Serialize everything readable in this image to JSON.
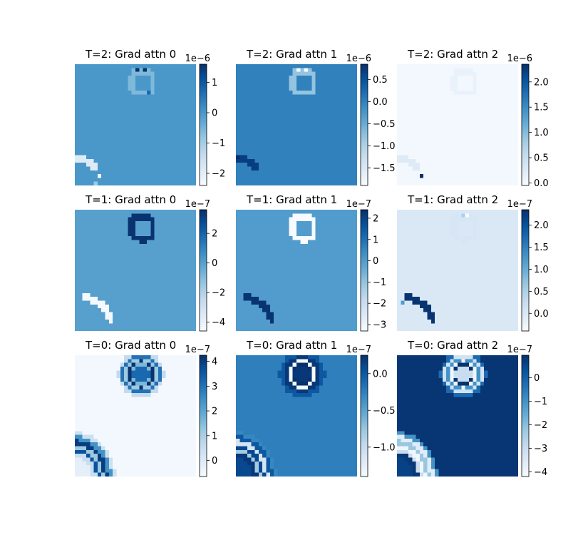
{
  "colormap": "Blues",
  "colormap_stops": [
    "#f7fbff",
    "#deebf7",
    "#c6dbef",
    "#9ecae1",
    "#6baed6",
    "#4292c6",
    "#2171b5",
    "#08519c",
    "#08306b"
  ],
  "chart_data": [
    {
      "type": "heatmap",
      "title": "T=2: Grad attn 0",
      "grid": 32,
      "background": 0.0,
      "vmin": -2.4,
      "vmax": 1.6,
      "colorbar": {
        "ticks": [
          -2,
          -1,
          0,
          1
        ],
        "tick_labels": [
          "−2",
          "−1",
          "0",
          "1"
        ],
        "offset_text": "1e−6"
      },
      "features": {
        "square": {
          "cx": 17.8,
          "cy": 4.8,
          "rx": 2.9,
          "ry": 3.0,
          "ring": 0.9,
          "fill": null
        },
        "square_value": -0.6,
        "square_dots": [
          {
            "x": 16,
            "y": 1,
            "v": 1.6
          },
          {
            "x": 18,
            "y": 1,
            "v": 1.6
          },
          {
            "x": 19,
            "y": 7,
            "v": 0.7
          }
        ],
        "arc": {
          "cx": 0,
          "cy": 32,
          "r1": 4.2,
          "r2": 5.4,
          "start_deg": 35,
          "end_deg": 90,
          "rows": [
            24,
            32
          ]
        },
        "arc_value": -1.9,
        "arc_dots": [
          {
            "x": 6,
            "y": 29,
            "v": -2.4
          },
          {
            "x": 5,
            "y": 31,
            "v": -0.9
          }
        ]
      }
    },
    {
      "type": "heatmap",
      "title": "T=2: Grad attn 1",
      "grid": 32,
      "background": 0.0,
      "vmin": -1.9,
      "vmax": 0.85,
      "colorbar": {
        "ticks": [
          -1.5,
          -1.0,
          -0.5,
          0.0,
          0.5
        ],
        "tick_labels": [
          "−1.5",
          "−1.0",
          "−0.5",
          "0.0",
          "0.5"
        ],
        "offset_text": "1e−6"
      },
      "features": {
        "square": {
          "cx": 17.8,
          "cy": 4.8,
          "rx": 2.9,
          "ry": 3.0,
          "ring": 0.9,
          "fill": null
        },
        "square_value": -0.8,
        "square_dots": [
          {
            "x": 16,
            "y": 1,
            "v": -1.9
          },
          {
            "x": 18,
            "y": 1,
            "v": -1.9
          }
        ],
        "arc": {
          "cx": 0,
          "cy": 32,
          "r1": 4.2,
          "r2": 5.4,
          "start_deg": 35,
          "end_deg": 90,
          "rows": [
            24,
            32
          ]
        },
        "arc_value": 0.7,
        "arc_dots": [
          {
            "x": 0,
            "y": 24,
            "v": 0.85
          }
        ]
      }
    },
    {
      "type": "heatmap",
      "title": "T=2: Grad attn 2",
      "grid": 32,
      "background": 0.0,
      "vmin": -0.05,
      "vmax": 2.35,
      "colorbar": {
        "ticks": [
          0.0,
          0.5,
          1.0,
          1.5,
          2.0
        ],
        "tick_labels": [
          "0.0",
          "0.5",
          "1.0",
          "1.5",
          "2.0"
        ],
        "offset_text": "1e−6"
      },
      "features": {
        "square": {
          "cx": 17.8,
          "cy": 4.8,
          "rx": 2.9,
          "ry": 3.0,
          "ring": 0.9,
          "fill": null
        },
        "square_value": 0.12,
        "square_dots": [],
        "arc": {
          "cx": 0,
          "cy": 32,
          "r1": 4.2,
          "r2": 5.4,
          "start_deg": 35,
          "end_deg": 90,
          "rows": [
            24,
            32
          ]
        },
        "arc_value": 0.25,
        "arc_dots": [
          {
            "x": 6,
            "y": 29,
            "v": 2.35
          }
        ]
      }
    },
    {
      "type": "heatmap",
      "title": "T=1: Grad attn 0",
      "grid": 32,
      "background": 0.0,
      "vmin": -4.6,
      "vmax": 3.6,
      "colorbar": {
        "ticks": [
          -4,
          -2,
          0,
          2
        ],
        "tick_labels": [
          "−4",
          "−2",
          "0",
          "2"
        ],
        "offset_text": "1e−7"
      },
      "features": {
        "square": {
          "cx": 17.8,
          "cy": 4.8,
          "rx": 2.9,
          "ry": 3.0,
          "ring": 0.95,
          "fill": null
        },
        "square_value": 3.5,
        "square_dots": [],
        "arc": {
          "cx": 0,
          "cy": 33,
          "r1": 6.3,
          "r2": 7.6,
          "start_deg": 20,
          "end_deg": 78,
          "rows": [
            22,
            32
          ]
        },
        "arc_value": -4.5,
        "arc_dots": []
      }
    },
    {
      "type": "heatmap",
      "title": "T=1: Grad attn 1",
      "grid": 32,
      "background": 0.0,
      "vmin": -3.3,
      "vmax": 2.4,
      "colorbar": {
        "ticks": [
          -3,
          -2,
          -1,
          0,
          1,
          2
        ],
        "tick_labels": [
          "−3",
          "−2",
          "−1",
          "0",
          "1",
          "2"
        ],
        "offset_text": "1e−7"
      },
      "features": {
        "square": {
          "cx": 17.8,
          "cy": 4.8,
          "rx": 2.9,
          "ry": 3.0,
          "ring": 0.95,
          "fill": null
        },
        "square_value": -3.3,
        "square_dots": [],
        "arc": {
          "cx": 0,
          "cy": 33,
          "r1": 6.3,
          "r2": 7.6,
          "start_deg": 20,
          "end_deg": 78,
          "rows": [
            22,
            32
          ]
        },
        "arc_value": 2.3,
        "arc_dots": []
      }
    },
    {
      "type": "heatmap",
      "title": "T=1: Grad attn 2",
      "grid": 32,
      "background": 0.0,
      "vmin": -0.4,
      "vmax": 2.35,
      "colorbar": {
        "ticks": [
          0.0,
          0.5,
          1.0,
          1.5,
          2.0
        ],
        "tick_labels": [
          "0.0",
          "0.5",
          "1.0",
          "1.5",
          "2.0"
        ],
        "offset_text": "1e−7"
      },
      "features": {
        "square": {
          "cx": 17.8,
          "cy": 4.8,
          "rx": 2.9,
          "ry": 3.0,
          "ring": 0.95,
          "fill": null
        },
        "square_value": 0.05,
        "square_dots": [
          {
            "x": 18,
            "y": 1,
            "v": -0.4
          },
          {
            "x": 17,
            "y": 1,
            "v": 0.5
          }
        ],
        "arc": {
          "cx": 0,
          "cy": 33,
          "r1": 6.3,
          "r2": 7.6,
          "start_deg": 20,
          "end_deg": 78,
          "rows": [
            22,
            32
          ]
        },
        "arc_value": 2.3,
        "arc_dots": [
          {
            "x": 1,
            "y": 24,
            "v": 1.2
          }
        ]
      }
    },
    {
      "type": "heatmap",
      "title": "T=0: Grad attn 0",
      "grid": 32,
      "background": -0.55,
      "vmin": -0.65,
      "vmax": 4.25,
      "colorbar": {
        "ticks": [
          0,
          1,
          2,
          3,
          4
        ],
        "tick_labels": [
          "0",
          "1",
          "2",
          "3",
          "4"
        ],
        "offset_text": "1e−7"
      },
      "features": {
        "blob": {
          "cx": 17.5,
          "cy": 5.0,
          "rings": [
            {
              "r": 0.0,
              "v": 3.2
            },
            {
              "r": 2.2,
              "v": 1.6
            },
            {
              "r": 3.0,
              "v": 4.2
            },
            {
              "r": 3.8,
              "v": 1.2
            },
            {
              "r": 4.6,
              "v": 3.0
            },
            {
              "r": 5.4,
              "v": 0.6
            },
            {
              "r": 6.2,
              "v": -0.55
            }
          ]
        },
        "arc_bands": {
          "cx": 0,
          "cy": 32,
          "bands": [
            {
              "r": 4.5,
              "v": 0.5
            },
            {
              "r": 5.6,
              "v": 3.6
            },
            {
              "r": 6.6,
              "v": 1.2
            },
            {
              "r": 7.6,
              "v": 4.0
            },
            {
              "r": 8.6,
              "v": 2.4
            },
            {
              "r": 9.6,
              "v": 0.4
            },
            {
              "r": 10.6,
              "v": -0.55
            }
          ],
          "inner_value": -0.2
        }
      }
    },
    {
      "type": "heatmap",
      "title": "T=0: Grad attn 1",
      "grid": 32,
      "background": -0.25,
      "vmin": -1.4,
      "vmax": 0.25,
      "colorbar": {
        "ticks": [
          -1.0,
          -0.5,
          0.0
        ],
        "tick_labels": [
          "−1.0",
          "−0.5",
          "0.0"
        ],
        "offset_text": "1e−7"
      },
      "features": {
        "blob": {
          "cx": 17.5,
          "cy": 5.0,
          "rings": [
            {
              "r": 0.0,
              "v": 0.2
            },
            {
              "r": 2.4,
              "v": 0.25
            },
            {
              "r": 3.0,
              "v": -1.4
            },
            {
              "r": 3.9,
              "v": 0.2
            },
            {
              "r": 5.0,
              "v": 0.0
            },
            {
              "r": 6.2,
              "v": -0.25
            }
          ]
        },
        "arc_bands": {
          "cx": 0,
          "cy": 32,
          "bands": [
            {
              "r": 4.5,
              "v": 0.2
            },
            {
              "r": 5.6,
              "v": -0.8
            },
            {
              "r": 6.6,
              "v": 0.1
            },
            {
              "r": 7.6,
              "v": -1.1
            },
            {
              "r": 8.6,
              "v": 0.0
            },
            {
              "r": 9.6,
              "v": -0.3
            },
            {
              "r": 10.6,
              "v": -0.25
            }
          ],
          "inner_value": 0.1
        }
      }
    },
    {
      "type": "heatmap",
      "title": "T=0: Grad attn 2",
      "grid": 32,
      "background": 0.85,
      "vmin": -4.2,
      "vmax": 0.95,
      "colorbar": {
        "ticks": [
          -4,
          -3,
          -2,
          -1,
          0
        ],
        "tick_labels": [
          "−4",
          "−3",
          "−2",
          "−1",
          "0"
        ],
        "offset_text": "1e−7"
      },
      "features": {
        "blob": {
          "cx": 17.5,
          "cy": 5.0,
          "rings": [
            {
              "r": 0.0,
              "v": -3.0
            },
            {
              "r": 2.2,
              "v": 0.9
            },
            {
              "r": 3.0,
              "v": -4.0
            },
            {
              "r": 3.8,
              "v": -1.0
            },
            {
              "r": 4.6,
              "v": -3.2
            },
            {
              "r": 5.4,
              "v": -0.2
            },
            {
              "r": 6.2,
              "v": 0.85
            }
          ]
        },
        "arc_bands": {
          "cx": 0,
          "cy": 32,
          "bands": [
            {
              "r": 4.5,
              "v": 0.8
            },
            {
              "r": 5.6,
              "v": -3.0
            },
            {
              "r": 6.6,
              "v": -4.0
            },
            {
              "r": 7.6,
              "v": -2.2
            },
            {
              "r": 8.6,
              "v": -3.6
            },
            {
              "r": 9.6,
              "v": -1.0
            },
            {
              "r": 10.6,
              "v": 0.85
            }
          ],
          "inner_value": 0.6
        }
      }
    }
  ]
}
